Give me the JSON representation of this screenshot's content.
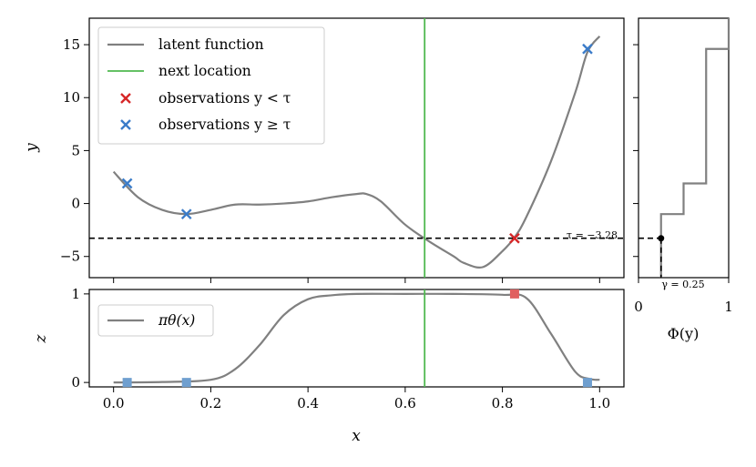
{
  "chart_data": [
    {
      "type": "line",
      "panel": "main",
      "ylabel": "y",
      "xlim": [
        -0.05,
        1.05
      ],
      "ylim": [
        -7,
        17.5
      ],
      "yticks": [
        -5,
        0,
        5,
        10,
        15
      ],
      "ytick_labels": [
        "−5",
        "0",
        "5",
        "10",
        "15"
      ],
      "legend_position": "top-left",
      "legend": {
        "latent": "latent function",
        "next": "next location",
        "obs_low": "observations y < τ",
        "obs_high": "observations y ≥ τ"
      },
      "latent_function": {
        "x": [
          0.0,
          0.05,
          0.1,
          0.15,
          0.2,
          0.25,
          0.3,
          0.35,
          0.4,
          0.45,
          0.5,
          0.52,
          0.55,
          0.6,
          0.65,
          0.7,
          0.72,
          0.76,
          0.8,
          0.825,
          0.85,
          0.9,
          0.95,
          0.975,
          1.0
        ],
        "y": [
          3.0,
          0.6,
          -0.6,
          -1.0,
          -0.6,
          -0.1,
          -0.1,
          0.0,
          0.2,
          0.6,
          0.9,
          0.9,
          0.2,
          -2.0,
          -3.6,
          -5.0,
          -5.6,
          -6.0,
          -4.5,
          -3.2,
          -1.2,
          4.0,
          10.5,
          14.3,
          15.8
        ]
      },
      "next_location": 0.64,
      "observations_low": [
        {
          "x": 0.825,
          "y": -3.28
        }
      ],
      "observations_high": [
        {
          "x": 0.028,
          "y": 1.9
        },
        {
          "x": 0.15,
          "y": -1.0
        },
        {
          "x": 0.975,
          "y": 14.6
        }
      ],
      "tau": -3.28,
      "tau_label": "τ = −3.28",
      "colors": {
        "latent": "#808080",
        "next": "#4fb84f",
        "low": "#d62728",
        "high": "#3b7cc9",
        "threshold": "#000000"
      }
    },
    {
      "type": "line",
      "panel": "bottom",
      "xlabel": "x",
      "ylabel": "z",
      "xlim": [
        -0.05,
        1.05
      ],
      "ylim": [
        -0.05,
        1.05
      ],
      "xticks": [
        0.0,
        0.2,
        0.4,
        0.6,
        0.8,
        1.0
      ],
      "xtick_labels": [
        "0.0",
        "0.2",
        "0.4",
        "0.6",
        "0.8",
        "1.0"
      ],
      "yticks": [
        0,
        1
      ],
      "ytick_labels": [
        "0",
        "1"
      ],
      "legend_position": "top-left",
      "legend": {
        "pi": "πθ(x)"
      },
      "pi_theta": {
        "x": [
          0.0,
          0.1,
          0.2,
          0.25,
          0.3,
          0.35,
          0.4,
          0.45,
          0.5,
          0.6,
          0.7,
          0.8,
          0.85,
          0.9,
          0.95,
          0.98,
          1.0
        ],
        "y": [
          0.0,
          0.005,
          0.03,
          0.15,
          0.42,
          0.76,
          0.94,
          0.985,
          1.0,
          1.0,
          1.0,
          0.99,
          0.95,
          0.55,
          0.12,
          0.04,
          0.03
        ]
      },
      "next_location": 0.64,
      "points_low": [
        {
          "x": 0.825,
          "z": 1
        }
      ],
      "points_high": [
        {
          "x": 0.028,
          "z": 0
        },
        {
          "x": 0.15,
          "z": 0
        },
        {
          "x": 0.975,
          "z": 0
        }
      ]
    },
    {
      "type": "line",
      "panel": "side",
      "xlabel": "Φ(y)",
      "xlim": [
        0,
        1
      ],
      "xticks": [
        0,
        1
      ],
      "xtick_labels": [
        "0",
        "1"
      ],
      "ecdf_steps": [
        {
          "y": -7.0,
          "phi": 0.25
        },
        {
          "y": -1.0,
          "phi": 0.25
        },
        {
          "y": -1.0,
          "phi": 0.5
        },
        {
          "y": 1.9,
          "phi": 0.5
        },
        {
          "y": 1.9,
          "phi": 0.75
        },
        {
          "y": 14.6,
          "phi": 0.75
        },
        {
          "y": 14.6,
          "phi": 1.0
        },
        {
          "y": 17.5,
          "phi": 1.0
        }
      ],
      "gamma": 0.25,
      "gamma_label": "γ = 0.25"
    }
  ]
}
